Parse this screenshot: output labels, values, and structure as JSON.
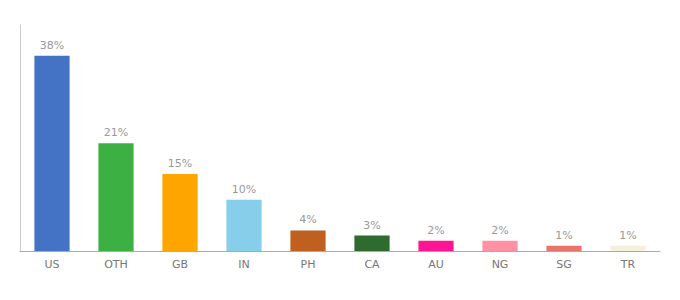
{
  "chart_data": {
    "type": "bar",
    "categories": [
      "US",
      "OTH",
      "GB",
      "IN",
      "PH",
      "CA",
      "AU",
      "NG",
      "SG",
      "TR"
    ],
    "values": [
      38,
      21,
      15,
      10,
      4,
      3,
      2,
      2,
      1,
      1
    ],
    "value_labels": [
      "38%",
      "21%",
      "15%",
      "10%",
      "4%",
      "3%",
      "2%",
      "2%",
      "1%",
      "1%"
    ],
    "colors": [
      "#4472C4",
      "#3CB043",
      "#FFA500",
      "#87CEEB",
      "#C06020",
      "#2E6B2E",
      "#FF1493",
      "#FF91A4",
      "#E8746A",
      "#F5F0DC"
    ],
    "ylim": [
      0,
      44
    ],
    "grid": false,
    "data_labels": true,
    "tick_labels": "x"
  }
}
